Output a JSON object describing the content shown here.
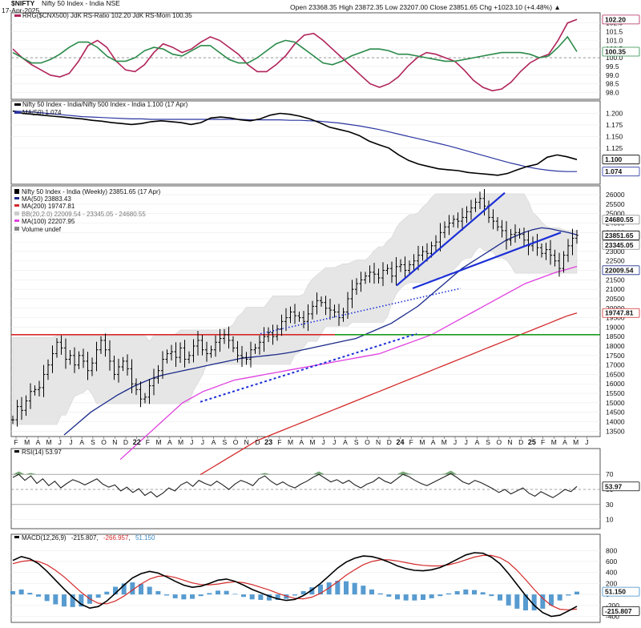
{
  "header": {
    "symbol": "$NIFTY",
    "subtitle": "Nifty 50 Index - India  NSE",
    "date": "17-Apr-2025",
    "ohlc": "Open 23368.35  High 23872.35  Low 23207.00  Close 23851.65  Chg +1023.10 (+4.48%) ▲"
  },
  "panels": {
    "rrg": {
      "title": "RRG($CNX500) JdK RS-Ratio 102.20 JdK RS-Mom 100.35"
    },
    "rs": {
      "title": "Nifty 50 Index - India/Nifty 500 Index - India 1.100 (17 Apr)",
      "ma_label": "MA(50) 1.074"
    },
    "price": {
      "legend": [
        "Nifty 50 Index - India (Weekly) 23851.65 (17 Apr)",
        "MA(50) 23883.43",
        "MA(200) 19747.81",
        "BB(20,2.0) 22009.54 - 23345.05 - 24680.55",
        "MA(100) 22207.95",
        "Volume undef"
      ]
    },
    "rsi": {
      "title": "RSI(14) 53.97"
    },
    "macd": {
      "title_prefix": "MACD(12,26,9)",
      "v1": "-215.807",
      "v2": "-266.957",
      "v3": "51.150"
    }
  },
  "x_axis": {
    "months": [
      "F",
      "M",
      "A",
      "M",
      "J",
      "J",
      "A",
      "S",
      "O",
      "N",
      "D",
      "22",
      "F",
      "M",
      "A",
      "M",
      "J",
      "J",
      "A",
      "S",
      "O",
      "N",
      "D",
      "23",
      "F",
      "M",
      "A",
      "M",
      "J",
      "J",
      "A",
      "S",
      "O",
      "N",
      "D",
      "24",
      "F",
      "M",
      "A",
      "M",
      "J",
      "J",
      "A",
      "S",
      "O",
      "N",
      "D",
      "25",
      "F",
      "M",
      "A",
      "M",
      "J"
    ]
  },
  "colors": {
    "price": "#000000",
    "ma50": "#1a2a8a",
    "ma200": "#d42a2a",
    "ma100": "#e040e0",
    "bb_fill": "#e4e4e4",
    "support": "#d42a2a",
    "breakout": "#1a9a1a",
    "trend": "#1c2fd6",
    "rsi_fill": "#4a8a4a",
    "macd_hist": "#3a8ac8"
  },
  "chart_data": [
    {
      "type": "line",
      "title": "RRG($CNX500) JdK RS-Ratio 102.20 JdK RS-Mom 100.35",
      "ylim": [
        97.7,
        102.4
      ],
      "yticks": [
        "102.0",
        "101.5",
        "101.0",
        "100.5",
        "100.0",
        "99.5",
        "99.0",
        "98.5",
        "98.0"
      ],
      "value_labels": [
        "102.20",
        "100.35"
      ],
      "series": [
        {
          "name": "JdK RS-Ratio",
          "color": "#b0245a",
          "values": [
            100.5,
            100.0,
            99.6,
            99.3,
            99.0,
            98.9,
            99.1,
            99.8,
            100.7,
            101.0,
            100.6,
            99.8,
            99.3,
            99.2,
            99.6,
            100.3,
            100.8,
            100.6,
            100.3,
            100.5,
            100.9,
            101.2,
            101.0,
            100.6,
            100.2,
            99.6,
            99.2,
            99.2,
            99.6,
            100.1,
            100.8,
            101.3,
            101.4,
            101.0,
            100.5,
            100.0,
            99.5,
            99.0,
            98.5,
            98.3,
            98.5,
            98.9,
            99.5,
            100.0,
            100.3,
            100.2,
            100.0,
            99.8,
            99.3,
            98.7,
            98.3,
            98.1,
            98.2,
            98.6,
            99.2,
            99.7,
            100.0,
            100.2,
            101.0,
            102.0,
            102.2
          ]
        },
        {
          "name": "JdK RS-Mom",
          "color": "#2a8a4a",
          "values": [
            100.3,
            100.0,
            99.7,
            99.7,
            99.9,
            100.2,
            100.6,
            100.9,
            100.9,
            100.6,
            100.1,
            99.8,
            99.8,
            100.0,
            100.4,
            100.6,
            100.5,
            100.2,
            100.1,
            100.4,
            100.7,
            100.7,
            100.3,
            99.9,
            99.7,
            99.7,
            100.0,
            100.4,
            100.8,
            101.0,
            100.9,
            100.5,
            100.1,
            99.7,
            99.6,
            99.8,
            100.1,
            100.3,
            100.5,
            100.5,
            100.4,
            100.2,
            100.2,
            100.1,
            100.0,
            99.9,
            99.8,
            99.8,
            99.9,
            100.0,
            100.1,
            100.2,
            100.3,
            100.3,
            100.3,
            100.2,
            100.0,
            100.1,
            100.6,
            101.2,
            100.35
          ]
        }
      ]
    },
    {
      "type": "line",
      "title": "Nifty 50 Index - India/Nifty 500 Index - India 1.100 (17 Apr)",
      "ylim": [
        1.05,
        1.22
      ],
      "yticks": [
        "1.200",
        "1.175",
        "1.150",
        "1.125"
      ],
      "value_labels": [
        "1.100",
        "1.074"
      ],
      "series": [
        {
          "name": "Ratio",
          "color": "#000000",
          "values": [
            1.205,
            1.2,
            1.198,
            1.196,
            1.194,
            1.192,
            1.19,
            1.188,
            1.185,
            1.183,
            1.18,
            1.178,
            1.176,
            1.178,
            1.182,
            1.184,
            1.182,
            1.18,
            1.176,
            1.18,
            1.19,
            1.192,
            1.19,
            1.186,
            1.184,
            1.188,
            1.196,
            1.2,
            1.198,
            1.194,
            1.188,
            1.18,
            1.17,
            1.165,
            1.16,
            1.152,
            1.14,
            1.132,
            1.125,
            1.11,
            1.098,
            1.09,
            1.085,
            1.08,
            1.078,
            1.076,
            1.072,
            1.07,
            1.068,
            1.066,
            1.07,
            1.078,
            1.085,
            1.09,
            1.105,
            1.11,
            1.106,
            1.1
          ]
        },
        {
          "name": "MA(50)",
          "color": "#2a35a0",
          "values": [
            1.205,
            1.204,
            1.203,
            1.201,
            1.199,
            1.197,
            1.195,
            1.193,
            1.192,
            1.191,
            1.19,
            1.189,
            1.188,
            1.188,
            1.187,
            1.187,
            1.187,
            1.187,
            1.187,
            1.187,
            1.187,
            1.187,
            1.187,
            1.187,
            1.186,
            1.186,
            1.186,
            1.186,
            1.185,
            1.185,
            1.184,
            1.183,
            1.181,
            1.179,
            1.176,
            1.173,
            1.169,
            1.165,
            1.16,
            1.155,
            1.15,
            1.145,
            1.14,
            1.135,
            1.13,
            1.124,
            1.118,
            1.112,
            1.106,
            1.1,
            1.094,
            1.089,
            1.084,
            1.08,
            1.077,
            1.075,
            1.074,
            1.074
          ]
        }
      ]
    },
    {
      "type": "candlestick",
      "title": "Nifty 50 Index - India (Weekly) 23851.65 (17 Apr)",
      "ylim": [
        13300,
        26300
      ],
      "yticks": [
        "26000",
        "25500",
        "25000",
        "24500",
        "24000",
        "23500",
        "23000",
        "22500",
        "22000",
        "21500",
        "21000",
        "20500",
        "20000",
        "19500",
        "19000",
        "18500",
        "18000",
        "17500",
        "17000",
        "16500",
        "16000",
        "15500",
        "15000",
        "14500",
        "14000",
        "13500"
      ],
      "value_labels": [
        "24680.55",
        "23851.65",
        "23345.05",
        "22009.54",
        "19747.81"
      ],
      "close_path": [
        14100,
        14800,
        14600,
        15100,
        15600,
        15700,
        15800,
        16500,
        17000,
        17600,
        18200,
        17900,
        17300,
        17500,
        17000,
        17500,
        17200,
        16700,
        17100,
        17800,
        18300,
        17800,
        17200,
        16500,
        16900,
        17200,
        16800,
        16000,
        15700,
        15200,
        15300,
        15900,
        16300,
        16700,
        17300,
        17600,
        17700,
        17400,
        17900,
        17300,
        17500,
        18000,
        18300,
        17800,
        17600,
        17800,
        18200,
        18400,
        18600,
        18300,
        17900,
        17500,
        17400,
        17300,
        17800,
        17900,
        18200,
        18500,
        18700,
        18500,
        18900,
        19300,
        19500,
        19800,
        19600,
        19500,
        19300,
        19700,
        20100,
        20400,
        20300,
        20000,
        19900,
        19800,
        19500,
        19800,
        20500,
        21000,
        21300,
        21500,
        21700,
        21900,
        21800,
        21600,
        22000,
        22100,
        21700,
        22200,
        22300,
        22000,
        22300,
        22500,
        22800,
        23000,
        22900,
        23300,
        23500,
        24000,
        24300,
        24500,
        24700,
        24600,
        24800,
        25100,
        25300,
        25600,
        25800,
        25400,
        24800,
        24600,
        24300,
        24100,
        23600,
        23900,
        24000,
        23900,
        23600,
        23300,
        23500,
        23200,
        22900,
        23100,
        22800,
        22500,
        22100,
        22800,
        23300,
        23700,
        23851.65
      ],
      "overlays": [
        {
          "name": "MA(50)",
          "color": "#1a2a8a",
          "path": [
            13300,
            13700,
            14100,
            14500,
            14800,
            15100,
            15400,
            15650,
            15900,
            16100,
            16300,
            16450,
            16550,
            16650,
            16750,
            16850,
            16950,
            17050,
            17150,
            17250,
            17350,
            17400,
            17450,
            17500,
            17550,
            17620,
            17700,
            17800,
            17900,
            18000,
            18100,
            18200,
            18300,
            18400,
            18600,
            18800,
            19000,
            19200,
            19500,
            19800,
            20100,
            20500,
            20900,
            21300,
            21700,
            22100,
            22400,
            22700,
            23000,
            23300,
            23600,
            23800,
            24000,
            24150,
            24250,
            24200,
            24100,
            24000,
            23883.43
          ]
        },
        {
          "name": "MA(200)",
          "color": "#d42a2a",
          "path": [
            11200,
            11500,
            11800,
            12100,
            12400,
            12700,
            13000,
            13200,
            13400,
            13600,
            13800,
            14000,
            14200,
            14400,
            14600,
            14800,
            15000,
            15200,
            15400,
            15600,
            15800,
            16000,
            16200,
            16400,
            16600,
            16800,
            17000,
            17200,
            17400,
            17600,
            17800,
            18000,
            18200,
            18400,
            18600,
            18800,
            19000,
            19200,
            19400,
            19600,
            19747.81
          ]
        },
        {
          "name": "MA(100)",
          "color": "#e040e0",
          "path": [
            12000,
            12500,
            13000,
            13500,
            14000,
            14500,
            15000,
            15300,
            15600,
            15800,
            16000,
            16200,
            16300,
            16400,
            16500,
            16600,
            16700,
            16800,
            16900,
            17000,
            17100,
            17200,
            17300,
            17400,
            17500,
            17600,
            17800,
            18000,
            18200,
            18400,
            18600,
            18900,
            19200,
            19500,
            19800,
            20100,
            20400,
            20700,
            21000,
            21300,
            21500,
            21700,
            21900,
            22050,
            22207.95
          ]
        }
      ],
      "levels": [
        {
          "name": "support",
          "value": 18600,
          "color": "#d42a2a"
        },
        {
          "name": "breakout",
          "value": 18600,
          "color": "#1a9a1a"
        }
      ]
    },
    {
      "type": "line",
      "title": "RSI(14) 53.97",
      "ylim": [
        0,
        100
      ],
      "yticks": [
        "70",
        "50",
        "30",
        "10"
      ],
      "value_labels": [
        "53.97"
      ],
      "values": [
        66,
        70,
        62,
        68,
        58,
        64,
        55,
        61,
        52,
        58,
        63,
        60,
        56,
        60,
        64,
        57,
        53,
        56,
        48,
        53,
        46,
        51,
        42,
        47,
        40,
        45,
        52,
        48,
        56,
        60,
        54,
        62,
        58,
        55,
        61,
        56,
        50,
        57,
        62,
        59,
        55,
        64,
        68,
        61,
        56,
        60,
        55,
        52,
        57,
        61,
        66,
        70,
        65,
        60,
        63,
        58,
        62,
        56,
        52,
        57,
        60,
        66,
        61,
        58,
        64,
        70,
        67,
        62,
        58,
        55,
        59,
        63,
        67,
        71,
        66,
        60,
        57,
        62,
        59,
        55,
        51,
        46,
        50,
        44,
        48,
        52,
        45,
        41,
        47,
        43,
        39,
        44,
        50,
        47,
        53.97
      ]
    },
    {
      "type": "line",
      "title": "MACD(12,26,9) -215.807, -266.957, 51.150",
      "ylim": [
        -480,
        950
      ],
      "yticks": [
        "800",
        "600",
        "400",
        "200",
        "0",
        "-200",
        "-400"
      ],
      "value_labels": [
        "51.150",
        "-215.807"
      ],
      "series": [
        {
          "name": "MACD",
          "color": "#000000",
          "values": [
            620,
            690,
            650,
            560,
            420,
            260,
            100,
            -50,
            -180,
            -250,
            -220,
            -120,
            20,
            170,
            300,
            380,
            420,
            390,
            320,
            240,
            170,
            130,
            150,
            200,
            260,
            280,
            240,
            170,
            90,
            30,
            -30,
            -80,
            -110,
            -90,
            -20,
            80,
            200,
            340,
            480,
            590,
            660,
            700,
            690,
            650,
            590,
            520,
            470,
            440,
            430,
            450,
            490,
            560,
            640,
            720,
            760,
            750,
            680,
            560,
            380,
            180,
            -20,
            -200,
            -330,
            -400,
            -380,
            -300,
            -215.807
          ]
        },
        {
          "name": "Signal",
          "color": "#d42a2a",
          "values": [
            560,
            600,
            620,
            600,
            540,
            440,
            320,
            180,
            40,
            -80,
            -160,
            -170,
            -120,
            -30,
            80,
            190,
            280,
            330,
            340,
            310,
            260,
            210,
            180,
            175,
            190,
            215,
            230,
            215,
            180,
            130,
            80,
            20,
            -30,
            -70,
            -80,
            -50,
            20,
            120,
            230,
            350,
            450,
            540,
            600,
            630,
            630,
            610,
            580,
            550,
            530,
            520,
            520,
            540,
            580,
            630,
            680,
            710,
            710,
            670,
            580,
            440,
            270,
            90,
            -70,
            -200,
            -270,
            -280,
            -266.957
          ]
        }
      ]
    }
  ]
}
